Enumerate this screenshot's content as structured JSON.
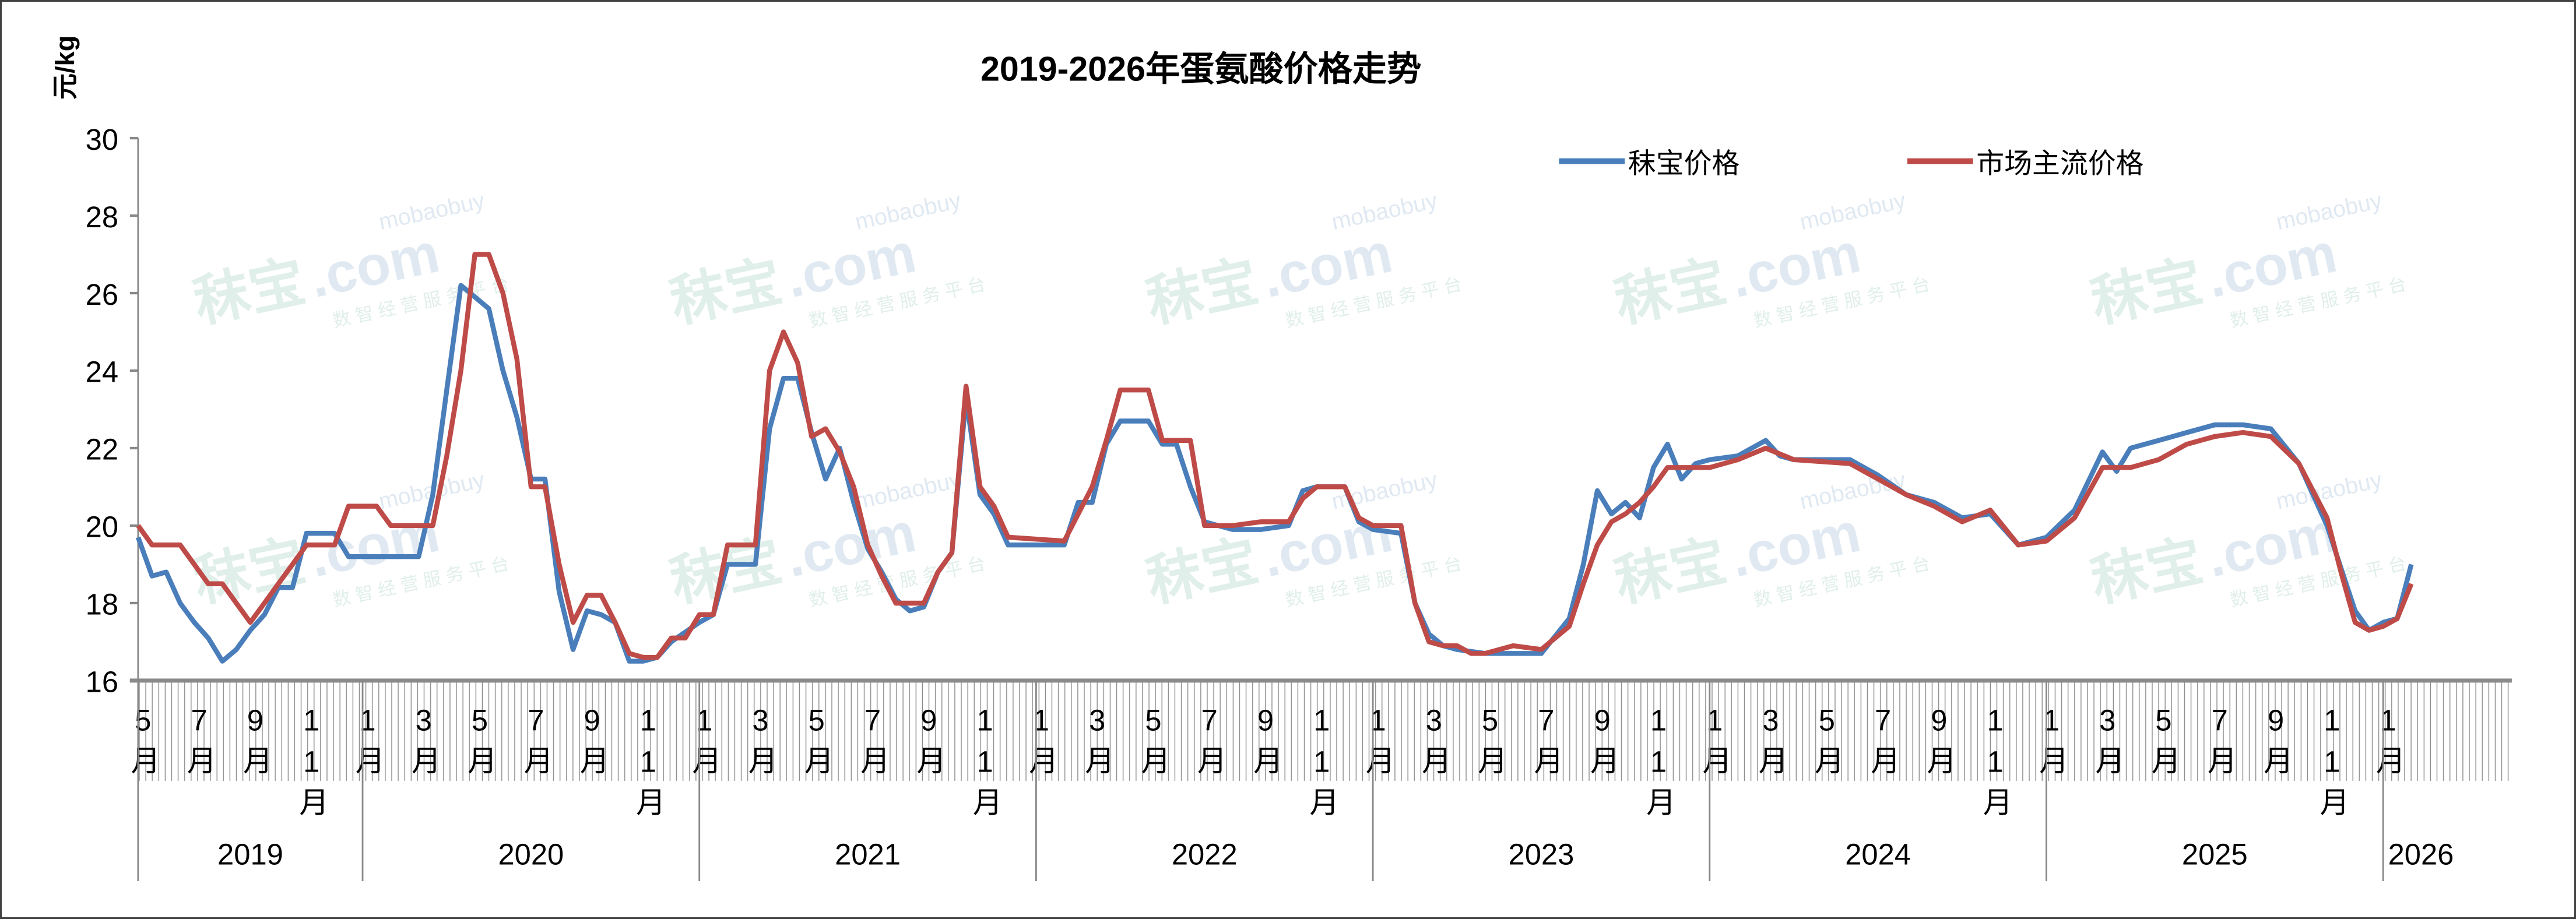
{
  "chart_data": {
    "type": "line",
    "title": "2019-2026年蛋氨酸价格走势",
    "ylabel": "元/kg",
    "xlabel": "",
    "ylim": [
      16,
      30
    ],
    "yticks": [
      "16",
      "18",
      "20",
      "22",
      "24",
      "26",
      "28",
      "30"
    ],
    "x_unit": "months since 2019-05",
    "xlim": [
      0,
      84.5
    ],
    "legend_position": "top-right",
    "grid": false,
    "month_labels": [
      {
        "m": 0,
        "label": "5月"
      },
      {
        "m": 2,
        "label": "7月"
      },
      {
        "m": 4,
        "label": "9月"
      },
      {
        "m": 6,
        "label": "11月"
      },
      {
        "m": 8,
        "label": "1月"
      },
      {
        "m": 10,
        "label": "3月"
      },
      {
        "m": 12,
        "label": "5月"
      },
      {
        "m": 14,
        "label": "7月"
      },
      {
        "m": 16,
        "label": "9月"
      },
      {
        "m": 18,
        "label": "11月"
      },
      {
        "m": 20,
        "label": "1月"
      },
      {
        "m": 22,
        "label": "3月"
      },
      {
        "m": 24,
        "label": "5月"
      },
      {
        "m": 26,
        "label": "7月"
      },
      {
        "m": 28,
        "label": "9月"
      },
      {
        "m": 30,
        "label": "11月"
      },
      {
        "m": 32,
        "label": "1月"
      },
      {
        "m": 34,
        "label": "3月"
      },
      {
        "m": 36,
        "label": "5月"
      },
      {
        "m": 38,
        "label": "7月"
      },
      {
        "m": 40,
        "label": "9月"
      },
      {
        "m": 42,
        "label": "11月"
      },
      {
        "m": 44,
        "label": "1月"
      },
      {
        "m": 46,
        "label": "3月"
      },
      {
        "m": 48,
        "label": "5月"
      },
      {
        "m": 50,
        "label": "7月"
      },
      {
        "m": 52,
        "label": "9月"
      },
      {
        "m": 54,
        "label": "11月"
      },
      {
        "m": 56,
        "label": "1月"
      },
      {
        "m": 58,
        "label": "3月"
      },
      {
        "m": 60,
        "label": "5月"
      },
      {
        "m": 62,
        "label": "7月"
      },
      {
        "m": 64,
        "label": "9月"
      },
      {
        "m": 66,
        "label": "11月"
      },
      {
        "m": 68,
        "label": "1月"
      },
      {
        "m": 70,
        "label": "3月"
      },
      {
        "m": 72,
        "label": "5月"
      },
      {
        "m": 74,
        "label": "7月"
      },
      {
        "m": 76,
        "label": "9月"
      },
      {
        "m": 78,
        "label": "11月"
      },
      {
        "m": 80,
        "label": "1月"
      }
    ],
    "year_labels": [
      {
        "start": 0,
        "end": 8,
        "label": "2019"
      },
      {
        "start": 8,
        "end": 20,
        "label": "2020"
      },
      {
        "start": 20,
        "end": 32,
        "label": "2021"
      },
      {
        "start": 32,
        "end": 44,
        "label": "2022"
      },
      {
        "start": 44,
        "end": 56,
        "label": "2023"
      },
      {
        "start": 56,
        "end": 68,
        "label": "2024"
      },
      {
        "start": 68,
        "end": 80,
        "label": "2025"
      },
      {
        "start": 80,
        "end": 84.5,
        "label": "2026"
      }
    ],
    "series": [
      {
        "name": "秣宝价格",
        "color": "#4a7ebb",
        "points": [
          [
            0,
            19.7
          ],
          [
            0.5,
            18.7
          ],
          [
            1,
            18.8
          ],
          [
            1.5,
            18.0
          ],
          [
            2,
            17.5
          ],
          [
            2.5,
            17.1
          ],
          [
            3,
            16.5
          ],
          [
            3.5,
            16.8
          ],
          [
            4,
            17.3
          ],
          [
            4.5,
            17.7
          ],
          [
            5,
            18.4
          ],
          [
            5.5,
            18.4
          ],
          [
            6,
            19.8
          ],
          [
            7,
            19.8
          ],
          [
            7.5,
            19.2
          ],
          [
            10,
            19.2
          ],
          [
            10.5,
            20.8
          ],
          [
            11,
            23.5
          ],
          [
            11.5,
            26.2
          ],
          [
            12,
            25.9
          ],
          [
            12.5,
            25.6
          ],
          [
            13,
            24.0
          ],
          [
            13.5,
            22.8
          ],
          [
            14,
            21.2
          ],
          [
            14.5,
            21.2
          ],
          [
            15,
            18.3
          ],
          [
            15.5,
            16.8
          ],
          [
            16,
            17.8
          ],
          [
            16.5,
            17.7
          ],
          [
            17,
            17.5
          ],
          [
            17.5,
            16.5
          ],
          [
            18,
            16.5
          ],
          [
            18.5,
            16.6
          ],
          [
            19,
            17.0
          ],
          [
            20,
            17.5
          ],
          [
            20.5,
            17.7
          ],
          [
            21,
            19.0
          ],
          [
            22,
            19.0
          ],
          [
            22.5,
            22.5
          ],
          [
            23,
            23.8
          ],
          [
            23.5,
            23.8
          ],
          [
            24,
            22.4
          ],
          [
            24.5,
            21.2
          ],
          [
            25,
            22.0
          ],
          [
            25.5,
            20.6
          ],
          [
            26,
            19.4
          ],
          [
            26.5,
            18.8
          ],
          [
            27,
            18.1
          ],
          [
            27.5,
            17.8
          ],
          [
            28,
            17.9
          ],
          [
            28.5,
            18.8
          ],
          [
            29,
            19.3
          ],
          [
            29.5,
            23.3
          ],
          [
            30,
            20.8
          ],
          [
            30.5,
            20.3
          ],
          [
            31,
            19.5
          ],
          [
            33,
            19.5
          ],
          [
            33.5,
            20.6
          ],
          [
            34,
            20.6
          ],
          [
            34.5,
            22.1
          ],
          [
            35,
            22.7
          ],
          [
            36,
            22.7
          ],
          [
            36.5,
            22.1
          ],
          [
            37,
            22.1
          ],
          [
            37.5,
            21.0
          ],
          [
            38,
            20.1
          ],
          [
            39,
            19.9
          ],
          [
            40,
            19.9
          ],
          [
            41,
            20.0
          ],
          [
            41.5,
            20.9
          ],
          [
            42,
            21.0
          ],
          [
            43,
            21.0
          ],
          [
            43.5,
            20.1
          ],
          [
            44,
            19.9
          ],
          [
            45,
            19.8
          ],
          [
            45.5,
            18.0
          ],
          [
            46,
            17.2
          ],
          [
            46.5,
            16.9
          ],
          [
            47,
            16.8
          ],
          [
            48,
            16.7
          ],
          [
            50,
            16.7
          ],
          [
            51,
            17.6
          ],
          [
            51.5,
            19.0
          ],
          [
            52,
            20.9
          ],
          [
            52.5,
            20.3
          ],
          [
            53,
            20.6
          ],
          [
            53.5,
            20.2
          ],
          [
            54,
            21.5
          ],
          [
            54.5,
            22.1
          ],
          [
            55,
            21.2
          ],
          [
            55.5,
            21.6
          ],
          [
            56,
            21.7
          ],
          [
            57,
            21.8
          ],
          [
            58,
            22.2
          ],
          [
            58.5,
            21.8
          ],
          [
            59,
            21.7
          ],
          [
            61,
            21.7
          ],
          [
            62,
            21.3
          ],
          [
            63,
            20.8
          ],
          [
            64,
            20.6
          ],
          [
            65,
            20.2
          ],
          [
            66,
            20.3
          ],
          [
            67,
            19.5
          ],
          [
            68,
            19.7
          ],
          [
            69,
            20.4
          ],
          [
            70,
            21.9
          ],
          [
            70.5,
            21.4
          ],
          [
            71,
            22.0
          ],
          [
            72,
            22.2
          ],
          [
            73,
            22.4
          ],
          [
            74,
            22.6
          ],
          [
            75,
            22.6
          ],
          [
            76,
            22.5
          ],
          [
            77,
            21.6
          ],
          [
            78,
            20.0
          ],
          [
            78.5,
            18.9
          ],
          [
            79,
            17.8
          ],
          [
            79.5,
            17.3
          ],
          [
            80,
            17.5
          ],
          [
            80.5,
            17.6
          ],
          [
            81,
            19.0
          ]
        ]
      },
      {
        "name": "市场主流价格",
        "color": "#be4b48",
        "points": [
          [
            0,
            20.0
          ],
          [
            0.5,
            19.5
          ],
          [
            1.5,
            19.5
          ],
          [
            2,
            19.0
          ],
          [
            2.5,
            18.5
          ],
          [
            3,
            18.5
          ],
          [
            3.5,
            18.0
          ],
          [
            4,
            17.5
          ],
          [
            4.5,
            18.0
          ],
          [
            5,
            18.5
          ],
          [
            5.5,
            19.0
          ],
          [
            6,
            19.5
          ],
          [
            7,
            19.5
          ],
          [
            7.5,
            20.5
          ],
          [
            8.5,
            20.5
          ],
          [
            9,
            20.0
          ],
          [
            10.5,
            20.0
          ],
          [
            11,
            21.8
          ],
          [
            11.5,
            24.0
          ],
          [
            12,
            27.0
          ],
          [
            12.5,
            27.0
          ],
          [
            13,
            26.0
          ],
          [
            13.5,
            24.3
          ],
          [
            14,
            21.0
          ],
          [
            14.5,
            21.0
          ],
          [
            15,
            19.0
          ],
          [
            15.5,
            17.5
          ],
          [
            16,
            18.2
          ],
          [
            16.5,
            18.2
          ],
          [
            17,
            17.5
          ],
          [
            17.5,
            16.7
          ],
          [
            18,
            16.6
          ],
          [
            18.5,
            16.6
          ],
          [
            19,
            17.1
          ],
          [
            19.5,
            17.1
          ],
          [
            20,
            17.7
          ],
          [
            20.5,
            17.7
          ],
          [
            21,
            19.5
          ],
          [
            22,
            19.5
          ],
          [
            22.5,
            24.0
          ],
          [
            23,
            25.0
          ],
          [
            23.5,
            24.2
          ],
          [
            24,
            22.3
          ],
          [
            24.5,
            22.5
          ],
          [
            25,
            21.9
          ],
          [
            25.5,
            21.0
          ],
          [
            26,
            19.5
          ],
          [
            26.5,
            18.7
          ],
          [
            27,
            18.0
          ],
          [
            28,
            18.0
          ],
          [
            28.5,
            18.8
          ],
          [
            29,
            19.3
          ],
          [
            29.5,
            23.6
          ],
          [
            30,
            21.0
          ],
          [
            30.5,
            20.5
          ],
          [
            31,
            19.7
          ],
          [
            33,
            19.6
          ],
          [
            34,
            21.0
          ],
          [
            34.5,
            22.2
          ],
          [
            35,
            23.5
          ],
          [
            36,
            23.5
          ],
          [
            36.5,
            22.2
          ],
          [
            37.5,
            22.2
          ],
          [
            38,
            20.0
          ],
          [
            39,
            20.0
          ],
          [
            40,
            20.1
          ],
          [
            41,
            20.1
          ],
          [
            41.5,
            20.7
          ],
          [
            42,
            21.0
          ],
          [
            43,
            21.0
          ],
          [
            43.5,
            20.2
          ],
          [
            44,
            20.0
          ],
          [
            45,
            20.0
          ],
          [
            45.5,
            18.0
          ],
          [
            46,
            17.0
          ],
          [
            46.5,
            16.9
          ],
          [
            47,
            16.9
          ],
          [
            47.5,
            16.7
          ],
          [
            48,
            16.7
          ],
          [
            49,
            16.9
          ],
          [
            50,
            16.8
          ],
          [
            51,
            17.4
          ],
          [
            51.5,
            18.5
          ],
          [
            52,
            19.5
          ],
          [
            52.5,
            20.1
          ],
          [
            53,
            20.3
          ],
          [
            53.5,
            20.6
          ],
          [
            54,
            21.0
          ],
          [
            54.5,
            21.5
          ],
          [
            56,
            21.5
          ],
          [
            57,
            21.7
          ],
          [
            58,
            22.0
          ],
          [
            59,
            21.7
          ],
          [
            61,
            21.6
          ],
          [
            62,
            21.2
          ],
          [
            63,
            20.8
          ],
          [
            64,
            20.5
          ],
          [
            65,
            20.1
          ],
          [
            66,
            20.4
          ],
          [
            67,
            19.5
          ],
          [
            68,
            19.6
          ],
          [
            69,
            20.2
          ],
          [
            70,
            21.5
          ],
          [
            71,
            21.5
          ],
          [
            72,
            21.7
          ],
          [
            73,
            22.1
          ],
          [
            74,
            22.3
          ],
          [
            75,
            22.4
          ],
          [
            76,
            22.3
          ],
          [
            77,
            21.6
          ],
          [
            78,
            20.2
          ],
          [
            78.5,
            18.8
          ],
          [
            79,
            17.5
          ],
          [
            79.5,
            17.3
          ],
          [
            80,
            17.4
          ],
          [
            80.5,
            17.6
          ],
          [
            81,
            18.5
          ]
        ]
      }
    ]
  },
  "watermark": {
    "brand": "秣宝",
    "domain": ".com",
    "site": "mobaobuy",
    "slogan": "数 智 经 营 服 务 平 台"
  }
}
